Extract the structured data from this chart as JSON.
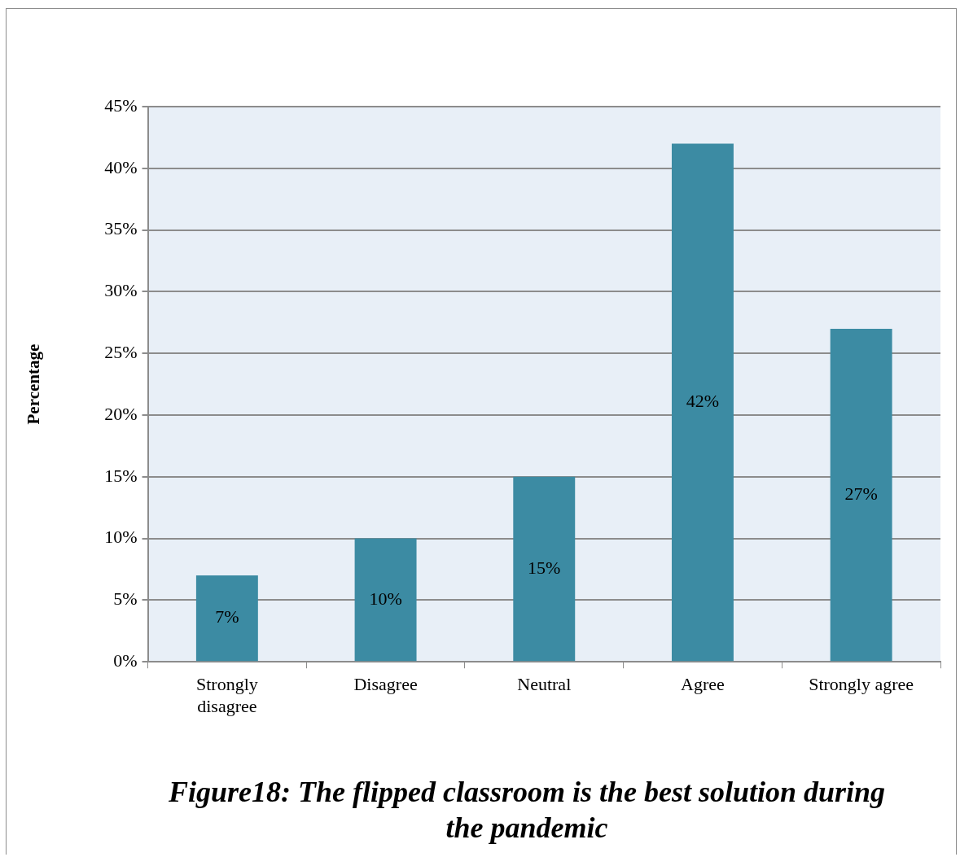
{
  "chart_data": {
    "type": "bar",
    "title": "Figure18: The flipped classroom is the best solution during the pandemic",
    "ylabel": "Percentage",
    "categories": [
      "Strongly disagree",
      "Disagree",
      "Neutral",
      "Agree",
      "Strongly agree"
    ],
    "values": [
      7,
      10,
      15,
      42,
      27
    ],
    "value_labels": [
      "7%",
      "10%",
      "15%",
      "42%",
      "27%"
    ],
    "color": "#3c8ba3",
    "ylim": [
      0,
      45
    ],
    "yticks": [
      {
        "value": 0,
        "label": "0%"
      },
      {
        "value": 5,
        "label": "5%"
      },
      {
        "value": 10,
        "label": "10%"
      },
      {
        "value": 15,
        "label": "15%"
      },
      {
        "value": 20,
        "label": "20%"
      },
      {
        "value": 25,
        "label": "25%"
      },
      {
        "value": 30,
        "label": "30%"
      },
      {
        "value": 35,
        "label": "35%"
      },
      {
        "value": 40,
        "label": "40%"
      },
      {
        "value": 45,
        "label": "45%"
      }
    ],
    "grid": "y"
  }
}
